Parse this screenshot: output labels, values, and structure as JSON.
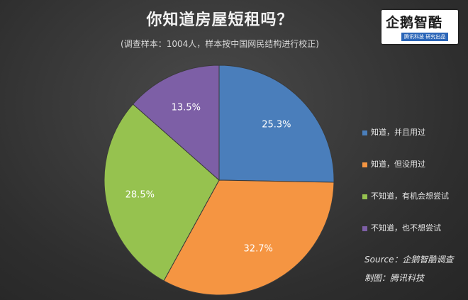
{
  "chart_data": {
    "type": "pie",
    "title": "你知道房屋短租吗？",
    "subtitle": "(调查样本：1004人，样本按中国网民结构进行校正)",
    "categories": [
      "知道，并且用过",
      "知道，但没用过",
      "不知道，有机会想尝试",
      "不知道，也不想尝试"
    ],
    "values": [
      25.3,
      32.7,
      28.5,
      13.5
    ],
    "labels": [
      "25.3%",
      "32.7%",
      "28.5%",
      "13.5%"
    ],
    "colors": [
      "#4a7ebb",
      "#f59542",
      "#96c24f",
      "#7d5fa6"
    ],
    "legend_position": "right"
  },
  "logo": {
    "main": "企鹅智酷",
    "sub": "腾讯科技 研究出品"
  },
  "source": "Source：企鹅智酷调查",
  "credit": "制图：腾讯科技"
}
